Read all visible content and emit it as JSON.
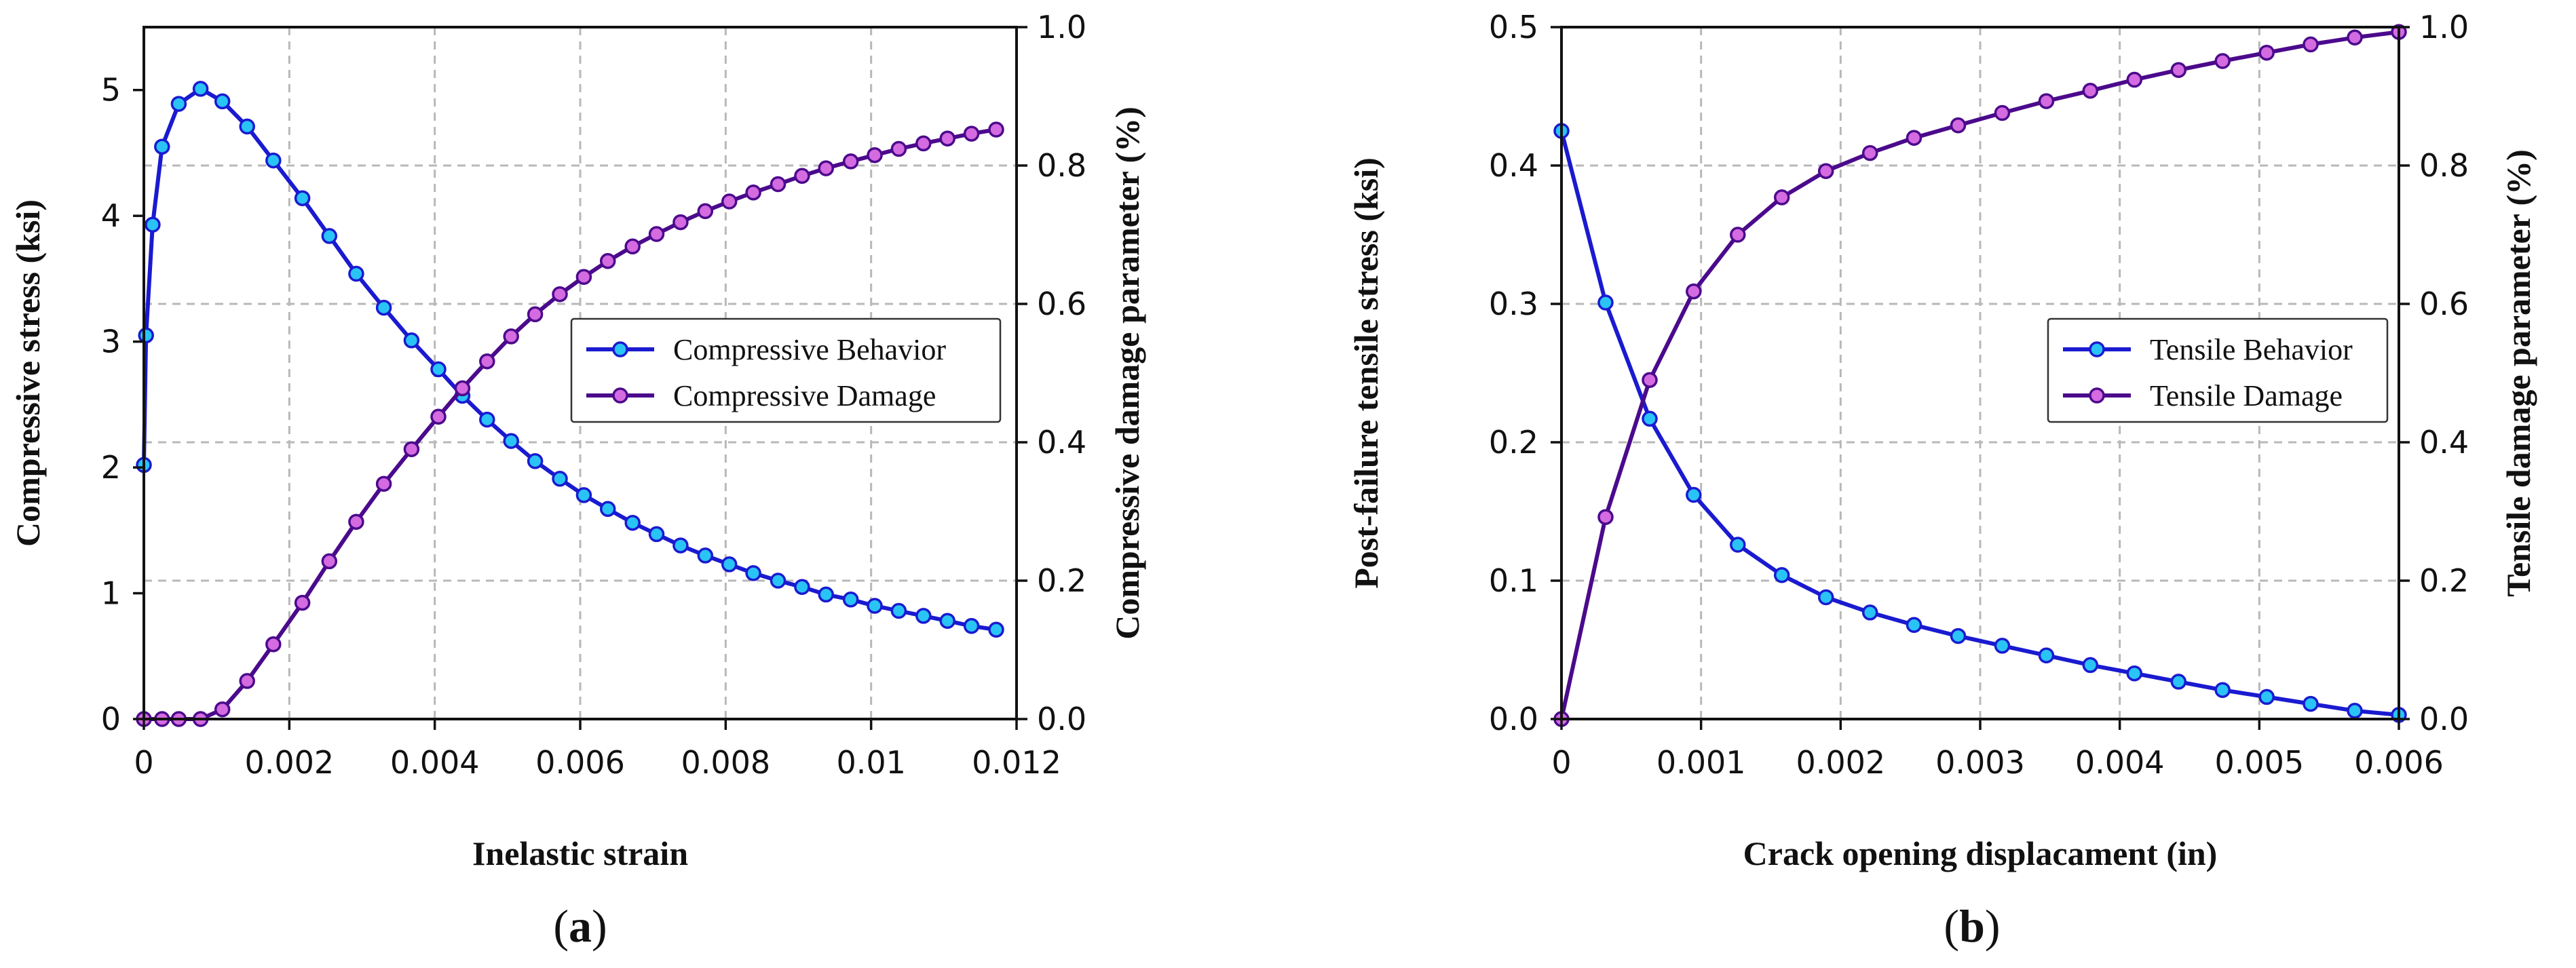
{
  "chart_data": [
    {
      "panel": "a",
      "type": "line",
      "panel_label_open": "(",
      "panel_label_letter": "a",
      "panel_label_close": ")",
      "xlabel": "Inelastic strain",
      "ylabel_left": "Compressive stress (ksi)",
      "ylabel_right": "Compressive damage parameter (%)",
      "xlim": [
        0,
        0.012
      ],
      "ylim_left": [
        0,
        5.5
      ],
      "ylim_right": [
        0,
        1.0
      ],
      "xticks": [
        0,
        0.002,
        0.004,
        0.006,
        0.008,
        0.01,
        0.012
      ],
      "xtick_labels": [
        "0",
        "0.002",
        "0.004",
        "0.006",
        "0.008",
        "0.01",
        "0.012"
      ],
      "yticks_left": [
        0,
        1,
        2,
        3,
        4,
        5
      ],
      "ytick_labels_left": [
        "0",
        "1",
        "2",
        "3",
        "4",
        "5"
      ],
      "yticks_right": [
        0,
        0.2,
        0.4,
        0.6,
        0.8,
        1.0
      ],
      "ytick_labels_right": [
        "0.0",
        "0.2",
        "0.4",
        "0.6",
        "0.8",
        "1.0"
      ],
      "grid": true,
      "legend_position": "center-right",
      "series": [
        {
          "name": "Compressive Behavior",
          "axis": "left",
          "line_color": "#1a1ad0",
          "marker_color": "#29c4f5",
          "x": [
            0,
            3e-05,
            0.00012,
            0.00025,
            0.00048,
            0.00078,
            0.00108,
            0.00142,
            0.00178,
            0.00218,
            0.00255,
            0.00292,
            0.0033,
            0.00368,
            0.00405,
            0.00438,
            0.00472,
            0.00505,
            0.00538,
            0.00572,
            0.00605,
            0.00638,
            0.00672,
            0.00705,
            0.00738,
            0.00772,
            0.00805,
            0.00838,
            0.00872,
            0.00905,
            0.00938,
            0.00972,
            0.01005,
            0.01038,
            0.01072,
            0.01105,
            0.01138,
            0.01172
          ],
          "y": [
            2.02,
            3.05,
            3.93,
            4.55,
            4.89,
            5.01,
            4.91,
            4.71,
            4.44,
            4.14,
            3.84,
            3.54,
            3.27,
            3.01,
            2.78,
            2.57,
            2.38,
            2.21,
            2.05,
            1.91,
            1.78,
            1.67,
            1.56,
            1.47,
            1.38,
            1.3,
            1.23,
            1.16,
            1.1,
            1.05,
            0.99,
            0.95,
            0.9,
            0.86,
            0.82,
            0.78,
            0.74,
            0.71
          ]
        },
        {
          "name": "Compressive Damage",
          "axis": "right",
          "line_color": "#4b0a8c",
          "marker_color": "#d46be0",
          "x": [
            0,
            0.00025,
            0.00048,
            0.00078,
            0.00108,
            0.00142,
            0.00178,
            0.00218,
            0.00255,
            0.00292,
            0.0033,
            0.00368,
            0.00405,
            0.00438,
            0.00472,
            0.00505,
            0.00538,
            0.00572,
            0.00605,
            0.00638,
            0.00672,
            0.00705,
            0.00738,
            0.00772,
            0.00805,
            0.00838,
            0.00872,
            0.00905,
            0.00938,
            0.00972,
            0.01005,
            0.01038,
            0.01072,
            0.01105,
            0.01138,
            0.01172
          ],
          "y": [
            0.0,
            0.0,
            0.0,
            0.0,
            0.014,
            0.055,
            0.108,
            0.168,
            0.228,
            0.285,
            0.34,
            0.39,
            0.437,
            0.478,
            0.517,
            0.553,
            0.585,
            0.614,
            0.639,
            0.662,
            0.683,
            0.701,
            0.718,
            0.734,
            0.748,
            0.761,
            0.773,
            0.785,
            0.796,
            0.806,
            0.815,
            0.824,
            0.832,
            0.839,
            0.846,
            0.852
          ]
        }
      ]
    },
    {
      "panel": "b",
      "type": "line",
      "panel_label_open": "(",
      "panel_label_letter": "b",
      "panel_label_close": ")",
      "xlabel": "Crack opening displacament (in)",
      "ylabel_left": "Post-failure tensile stress (ksi)",
      "ylabel_right": "Tensile damage parameter (%)",
      "xlim": [
        0,
        0.006
      ],
      "ylim_left": [
        0,
        0.5
      ],
      "ylim_right": [
        0,
        1.0
      ],
      "xticks": [
        0,
        0.001,
        0.002,
        0.003,
        0.004,
        0.005,
        0.006
      ],
      "xtick_labels": [
        "0",
        "0.001",
        "0.002",
        "0.003",
        "0.004",
        "0.005",
        "0.006"
      ],
      "yticks_left": [
        0,
        0.1,
        0.2,
        0.3,
        0.4,
        0.5
      ],
      "ytick_labels_left": [
        "0.0",
        "0.1",
        "0.2",
        "0.3",
        "0.4",
        "0.5"
      ],
      "yticks_right": [
        0,
        0.2,
        0.4,
        0.6,
        0.8,
        1.0
      ],
      "ytick_labels_right": [
        "0.0",
        "0.2",
        "0.4",
        "0.6",
        "0.8",
        "1.0"
      ],
      "grid": true,
      "legend_position": "center-right",
      "series": [
        {
          "name": "Tensile Behavior",
          "axis": "left",
          "line_color": "#1a1ad0",
          "marker_color": "#29c4f5",
          "x": [
            0,
            0.000316,
            0.000632,
            0.000947,
            0.001263,
            0.001579,
            0.001895,
            0.002211,
            0.002526,
            0.002842,
            0.003158,
            0.003474,
            0.003789,
            0.004105,
            0.004421,
            0.004737,
            0.005053,
            0.005368,
            0.005684,
            0.006
          ],
          "y": [
            0.425,
            0.301,
            0.217,
            0.162,
            0.126,
            0.104,
            0.088,
            0.077,
            0.068,
            0.06,
            0.053,
            0.046,
            0.039,
            0.033,
            0.027,
            0.021,
            0.016,
            0.011,
            0.006,
            0.003
          ]
        },
        {
          "name": "Tensile Damage",
          "axis": "right",
          "line_color": "#4b0a8c",
          "marker_color": "#d46be0",
          "x": [
            0,
            0.000316,
            0.000632,
            0.000947,
            0.001263,
            0.001579,
            0.001895,
            0.002211,
            0.002526,
            0.002842,
            0.003158,
            0.003474,
            0.003789,
            0.004105,
            0.004421,
            0.004737,
            0.005053,
            0.005368,
            0.005684,
            0.006
          ],
          "y": [
            0.0,
            0.292,
            0.49,
            0.618,
            0.7,
            0.754,
            0.792,
            0.818,
            0.84,
            0.858,
            0.876,
            0.893,
            0.908,
            0.924,
            0.938,
            0.951,
            0.963,
            0.975,
            0.985,
            0.993
          ]
        }
      ]
    }
  ]
}
